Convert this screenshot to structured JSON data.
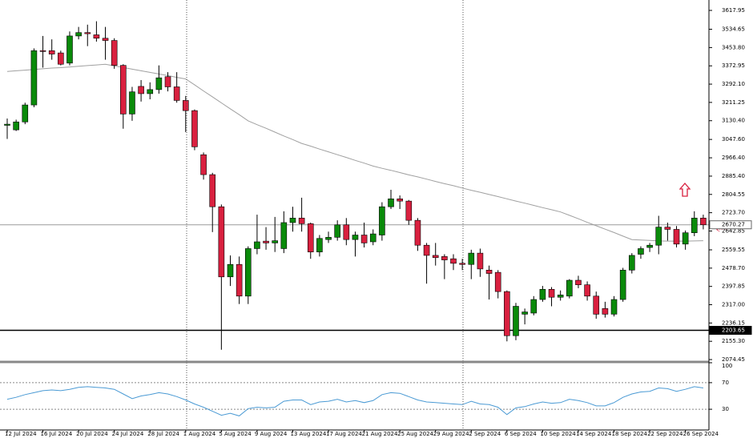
{
  "chart_data": [
    {
      "type": "candlestick",
      "categories": [
        "12 Jul 2024",
        null,
        null,
        null,
        "16 Jul 2024",
        null,
        null,
        null,
        "20 Jul 2024",
        null,
        null,
        null,
        "24 Jul 2024",
        null,
        null,
        null,
        "28 Jul 2024",
        null,
        null,
        null,
        "1 Aug 2024",
        null,
        null,
        null,
        "5 Aug 2024",
        null,
        null,
        null,
        "9 Aug 2024",
        null,
        null,
        null,
        "13 Aug 2024",
        null,
        null,
        null,
        "17 Aug 2024",
        null,
        null,
        null,
        "21 Aug 2024",
        null,
        null,
        null,
        "25 Aug 2024",
        null,
        null,
        null,
        "29 Aug 2024",
        null,
        null,
        null,
        "2 Sep 2024",
        null,
        null,
        null,
        "6 Sep 2024",
        null,
        null,
        null,
        "10 Sep 2024",
        null,
        null,
        null,
        "14 Sep 2024",
        null,
        null,
        null,
        "18 Sep 2024",
        null,
        null,
        null,
        "22 Sep 2024",
        null,
        null,
        null,
        "26 Sep 2024",
        null,
        null
      ],
      "open": [
        3110,
        3090,
        3125,
        3200,
        3440,
        3440,
        3430,
        3385,
        3505,
        3520,
        3510,
        3495,
        3485,
        3375,
        3160,
        3282,
        3250,
        3268,
        3325,
        3280,
        3220,
        3175,
        2980,
        2892,
        2750,
        2440,
        2495,
        2355,
        2565,
        2598,
        2590,
        2565,
        2680,
        2700,
        2675,
        2550,
        2605,
        2615,
        2670,
        2605,
        2625,
        2595,
        2625,
        2750,
        2785,
        2775,
        2690,
        2580,
        2535,
        2530,
        2520,
        2500,
        2495,
        2545,
        2470,
        2460,
        2375,
        2180,
        2275,
        2280,
        2340,
        2385,
        2350,
        2355,
        2425,
        2405,
        2355,
        2300,
        2275,
        2340,
        2470,
        2540,
        2570,
        2580,
        2660,
        2650,
        2585,
        2635,
        2700
      ],
      "high": [
        3140,
        3135,
        3210,
        3450,
        3505,
        3490,
        3440,
        3525,
        3545,
        3555,
        3570,
        3545,
        3495,
        3380,
        3280,
        3310,
        3300,
        3375,
        3345,
        3345,
        3240,
        3180,
        2990,
        2900,
        2760,
        2535,
        2530,
        2575,
        2715,
        2660,
        2705,
        2730,
        2750,
        2790,
        2680,
        2625,
        2640,
        2690,
        2700,
        2640,
        2680,
        2650,
        2770,
        2825,
        2800,
        2780,
        2700,
        2590,
        2590,
        2540,
        2540,
        2520,
        2560,
        2565,
        2490,
        2470,
        2380,
        2325,
        2300,
        2355,
        2400,
        2395,
        2380,
        2430,
        2445,
        2420,
        2375,
        2330,
        2355,
        2480,
        2545,
        2575,
        2590,
        2710,
        2680,
        2665,
        2645,
        2730,
        2715
      ],
      "low": [
        3050,
        3085,
        3115,
        3190,
        3365,
        3400,
        3375,
        3375,
        3490,
        3460,
        3480,
        3400,
        3360,
        3095,
        3130,
        3215,
        3225,
        3250,
        3260,
        3210,
        3080,
        3000,
        2870,
        2638,
        2118,
        2400,
        2320,
        2320,
        2540,
        2560,
        2550,
        2545,
        2640,
        2640,
        2520,
        2530,
        2590,
        2600,
        2580,
        2530,
        2570,
        2580,
        2600,
        2740,
        2740,
        2670,
        2555,
        2410,
        2490,
        2430,
        2470,
        2470,
        2430,
        2440,
        2340,
        2345,
        2155,
        2160,
        2230,
        2270,
        2330,
        2310,
        2335,
        2345,
        2390,
        2335,
        2255,
        2260,
        2265,
        2330,
        2455,
        2520,
        2550,
        2540,
        2600,
        2570,
        2560,
        2620,
        2650
      ],
      "close": [
        3115,
        3125,
        3200,
        3440,
        3437,
        3425,
        3380,
        3505,
        3520,
        3515,
        3495,
        3485,
        3375,
        3160,
        3258,
        3250,
        3268,
        3320,
        3280,
        3220,
        3175,
        3015,
        2892,
        2750,
        2440,
        2495,
        2355,
        2565,
        2595,
        2590,
        2600,
        2680,
        2700,
        2675,
        2550,
        2610,
        2615,
        2670,
        2605,
        2625,
        2590,
        2630,
        2750,
        2785,
        2775,
        2690,
        2580,
        2535,
        2525,
        2515,
        2500,
        2495,
        2545,
        2475,
        2455,
        2375,
        2180,
        2310,
        2285,
        2340,
        2385,
        2350,
        2360,
        2425,
        2405,
        2355,
        2275,
        2275,
        2340,
        2470,
        2535,
        2565,
        2580,
        2660,
        2650,
        2585,
        2635,
        2700,
        2670.27
      ],
      "up_color": "#0a8a0a",
      "down_color": "#d9203f",
      "ma_values": [
        3348,
        3351,
        3354,
        3357,
        3360,
        3363,
        3365,
        3368,
        3371,
        3374,
        3377,
        3380,
        3373,
        3366,
        3358,
        3351,
        3344,
        3337,
        3330,
        3322,
        3315,
        3289,
        3262,
        3236,
        3209,
        3183,
        3157,
        3130,
        3113,
        3097,
        3080,
        3063,
        3047,
        3030,
        3018,
        3005,
        2993,
        2980,
        2968,
        2955,
        2943,
        2930,
        2920,
        2911,
        2901,
        2891,
        2882,
        2872,
        2862,
        2852,
        2843,
        2833,
        2823,
        2814,
        2804,
        2795,
        2785,
        2775,
        2766,
        2756,
        2746,
        2737,
        2727,
        2712,
        2697,
        2681,
        2666,
        2651,
        2636,
        2620,
        2605,
        2603,
        2601,
        2599,
        2598,
        2598,
        2598,
        2599,
        2600
      ],
      "ma_color": "#a0a0a0",
      "ylim": [
        2064,
        3664
      ],
      "yticks": [
        3617.95,
        3534.65,
        {
          "value": 3453.8,
          "label": "3453.80"
        },
        3372.95,
        {
          "value": 3292.1,
          "label": "3292.10"
        },
        3211.25,
        {
          "value": 3130.4,
          "label": "3130.40"
        },
        {
          "value": 3047.6,
          "label": "3047.60"
        },
        {
          "value": 2966.4,
          "label": "2966.40"
        },
        {
          "value": 2885.4,
          "label": "2885.40"
        },
        2804.55,
        {
          "value": 2723.7,
          "label": "2723.70"
        },
        2642.85,
        2559.55,
        {
          "value": 2478.7,
          "label": "2478.70"
        },
        2397.85,
        {
          "value": 2317,
          "label": "2317.00"
        },
        2236.15,
        {
          "value": 2155.3,
          "label": "2155.30"
        },
        2074.45
      ],
      "levels": [
        {
          "value": 2670.27,
          "color": "#9a9a9a"
        },
        {
          "value": 2203.65,
          "color": "#000000"
        }
      ]
    },
    {
      "type": "line",
      "values": [
        45,
        48,
        52,
        55,
        58,
        59,
        58,
        60,
        63,
        64,
        63,
        62,
        60,
        53,
        46,
        50,
        52,
        55,
        53,
        49,
        44,
        38,
        33,
        27,
        21,
        24,
        20,
        31,
        33,
        32,
        33,
        42,
        44,
        44,
        37,
        41,
        42,
        45,
        41,
        43,
        40,
        43,
        52,
        55,
        54,
        49,
        44,
        41,
        40,
        39,
        38,
        37,
        42,
        38,
        37,
        33,
        22,
        32,
        34,
        38,
        41,
        39,
        40,
        45,
        43,
        40,
        35,
        35,
        40,
        48,
        53,
        56,
        57,
        62,
        61,
        57,
        60,
        64,
        62
      ],
      "color": "#4a9ad4",
      "ylim": [
        0,
        100
      ],
      "yticks": [
        100,
        70,
        30
      ]
    }
  ]
}
